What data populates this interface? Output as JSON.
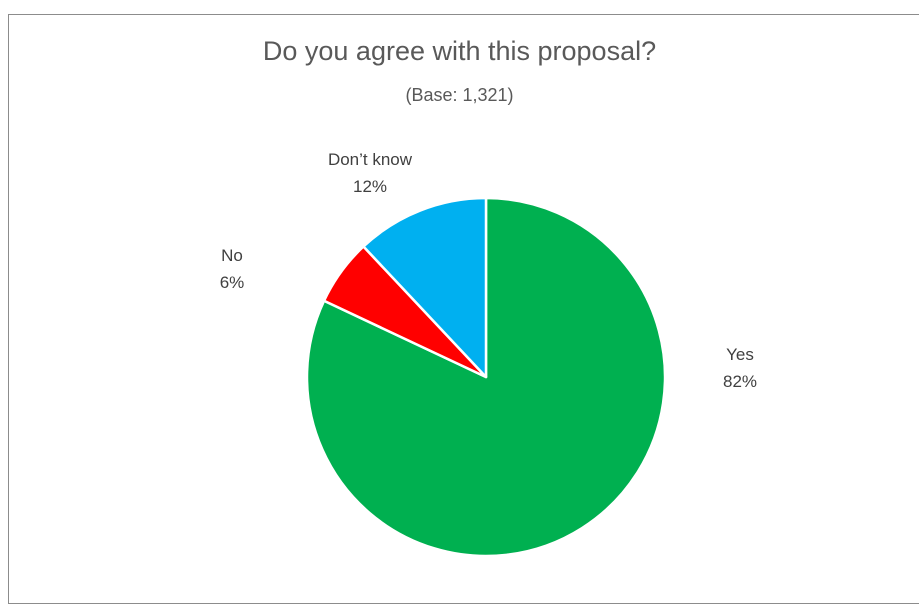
{
  "chart_data": {
    "type": "pie",
    "title": "Do you agree with this proposal?",
    "subtitle": "(Base: 1,321)",
    "slices": [
      {
        "label": "Yes",
        "value": 82,
        "value_label": "82%",
        "color": "#00b050"
      },
      {
        "label": "No",
        "value": 6,
        "value_label": "6%",
        "color": "#ff0000"
      },
      {
        "label": "Don’t know",
        "value": 12,
        "value_label": "12%",
        "color": "#00b0f0"
      }
    ],
    "start_angle": "12 o'clock, clockwise",
    "legend": "none (labels beside slices)"
  }
}
